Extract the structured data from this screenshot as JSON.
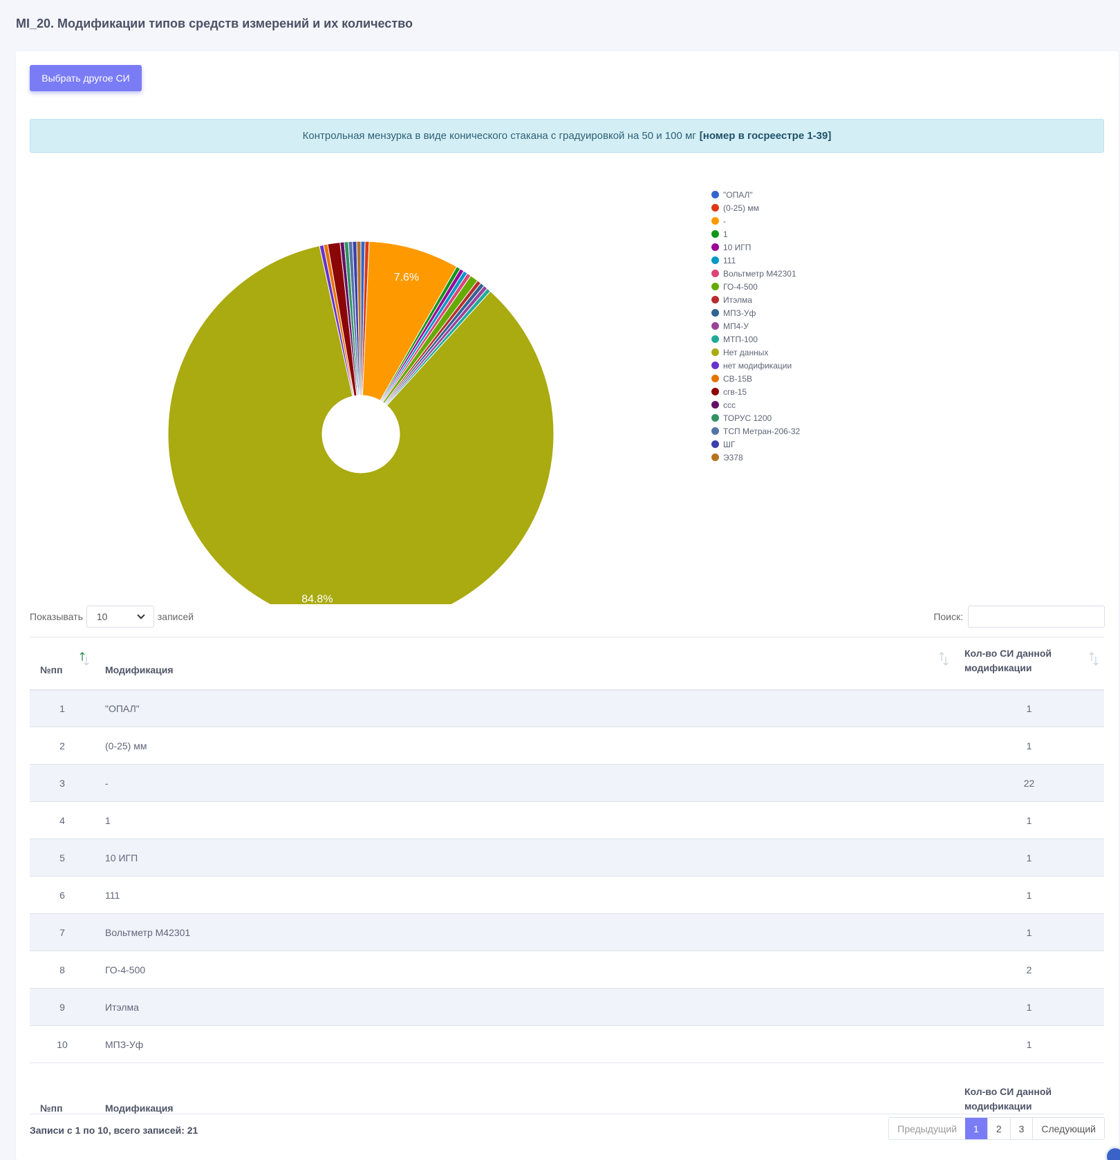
{
  "page": {
    "title": "MI_20. Модификации типов средств измерений и их количество"
  },
  "toolbar": {
    "select_label": "Выбрать другое СИ"
  },
  "banner": {
    "text": "Контрольная мензурка в виде конического стакана с градуировкой на 50 и 100 мг",
    "reg_text": "[номер в госреестре 1-39]"
  },
  "chart_data": {
    "type": "pie",
    "categories": [
      "\"ОПАЛ\"",
      "(0-25) мм",
      "-",
      "1",
      "10 ИГП",
      "111",
      "Вольтметр М42301",
      "ГО-4-500",
      "Итэлма",
      "МПЗ-Уф",
      "МП4-У",
      "МТП-100",
      "Нет данных",
      "нет модификации",
      "СВ-15В",
      "сгв-15",
      "ссс",
      "ТОРУС 1200",
      "ТСП Метран-206-32",
      "ШГ",
      "Э378"
    ],
    "values": [
      1,
      1,
      22,
      1,
      1,
      1,
      1,
      2,
      1,
      1,
      1,
      1,
      246,
      1,
      1,
      3,
      1,
      1,
      1,
      1,
      1
    ],
    "colors": [
      "#3366cc",
      "#dc3912",
      "#ff9900",
      "#109618",
      "#990099",
      "#0099c6",
      "#dd4477",
      "#66aa00",
      "#b82e2e",
      "#316395",
      "#994499",
      "#22aa99",
      "#aaaa11",
      "#6633cc",
      "#e67300",
      "#8b0707",
      "#651067",
      "#329262",
      "#5574a6",
      "#3b3eac",
      "#b77322"
    ],
    "slice_labels": [
      "",
      "",
      "7.6%",
      "",
      "",
      "",
      "",
      "",
      "",
      "",
      "",
      "",
      "84.8%",
      "",
      "",
      "",
      "",
      "",
      "",
      "",
      ""
    ],
    "legend_position": "right"
  },
  "table_controls": {
    "show_label": "Показывать",
    "show_value": "10",
    "entries_label": "записей",
    "search_label": "Поиск:"
  },
  "table": {
    "headers": {
      "num": "№пп",
      "mod": "Модификация",
      "count": "Кол-во СИ данной модификации"
    },
    "rows": [
      {
        "num": "1",
        "mod": "\"ОПАЛ\"",
        "count": "1"
      },
      {
        "num": "2",
        "mod": "(0-25) мм",
        "count": "1"
      },
      {
        "num": "3",
        "mod": "-",
        "count": "22"
      },
      {
        "num": "4",
        "mod": "1",
        "count": "1"
      },
      {
        "num": "5",
        "mod": "10 ИГП",
        "count": "1"
      },
      {
        "num": "6",
        "mod": "111",
        "count": "1"
      },
      {
        "num": "7",
        "mod": "Вольтметр М42301",
        "count": "1"
      },
      {
        "num": "8",
        "mod": "ГО-4-500",
        "count": "2"
      },
      {
        "num": "9",
        "mod": "Итэлма",
        "count": "1"
      },
      {
        "num": "10",
        "mod": "МПЗ-Уф",
        "count": "1"
      }
    ],
    "info": "Записи с 1 по 10, всего записей: 21"
  },
  "pagination": {
    "prev": "Предыдущий",
    "pages": [
      "1",
      "2",
      "3"
    ],
    "next": "Следующий",
    "current": "1"
  }
}
